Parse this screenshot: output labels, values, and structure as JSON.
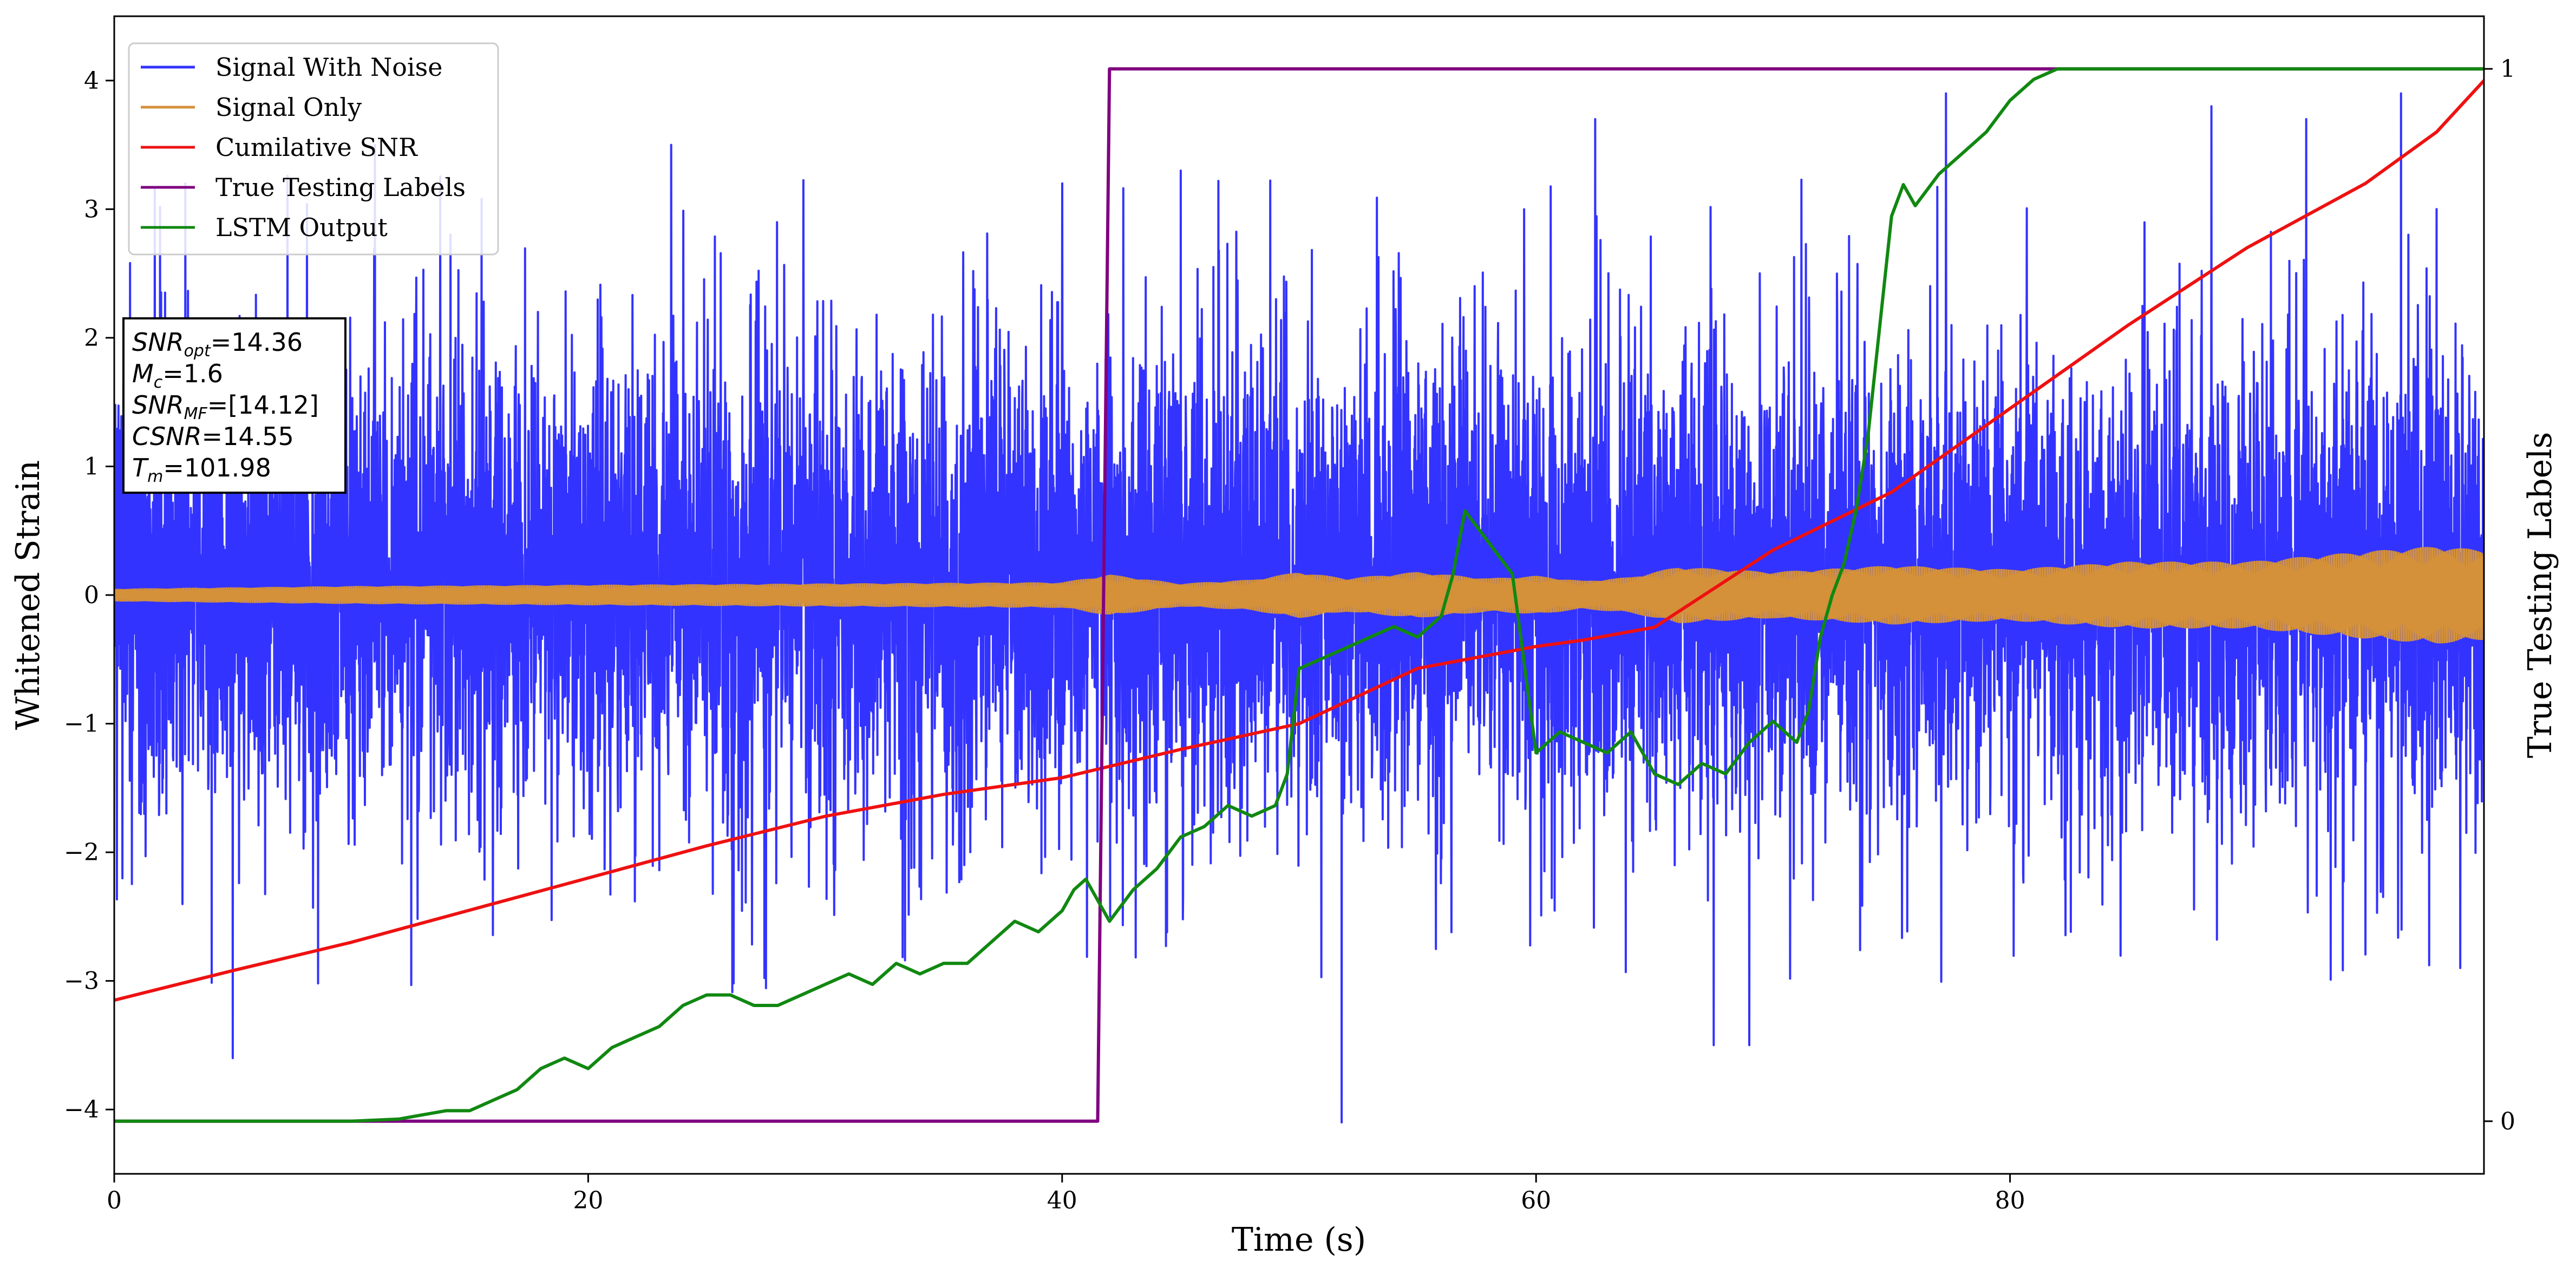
{
  "chart_data": {
    "type": "line",
    "xlabel": "Time (s)",
    "ylabel": "Whitened Strain",
    "y2label": "True Testing Labels",
    "xlim": [
      0,
      100
    ],
    "ylim": [
      -4.5,
      4.5
    ],
    "y2lim": [
      -0.05,
      1.05
    ],
    "x_ticks": [
      0,
      20,
      40,
      60,
      80
    ],
    "y_ticks": [
      -4,
      -3,
      -2,
      -1,
      0,
      1,
      2,
      3,
      4
    ],
    "y2_ticks": [
      0,
      1
    ],
    "legend_position": "upper-left",
    "grid": false,
    "series": [
      {
        "name": "Signal With Noise",
        "axis": "left",
        "color": "#3333ff",
        "style": "dense-noise",
        "typical_band": [
          -1.3,
          1.5
        ],
        "peaks": [
          {
            "x": 3.0,
            "y": 3.2
          },
          {
            "x": 5.0,
            "y": -3.6
          },
          {
            "x": 11.0,
            "y": 3.5
          },
          {
            "x": 23.5,
            "y": 3.5
          },
          {
            "x": 40.0,
            "y": 3.2
          },
          {
            "x": 45.0,
            "y": 3.3
          },
          {
            "x": 51.8,
            "y": -4.1
          },
          {
            "x": 62.5,
            "y": 3.7
          },
          {
            "x": 67.5,
            "y": -3.5
          },
          {
            "x": 69.0,
            "y": -3.5
          },
          {
            "x": 77.3,
            "y": 3.9
          },
          {
            "x": 88.5,
            "y": 3.8
          },
          {
            "x": 92.5,
            "y": 3.7
          },
          {
            "x": 96.5,
            "y": 3.9
          },
          {
            "x": 98.0,
            "y": 3.0
          },
          {
            "x": 99.0,
            "y": -2.9
          }
        ]
      },
      {
        "name": "Signal Only",
        "axis": "left",
        "color": "#d4913a",
        "style": "envelope",
        "x": [
          0,
          10,
          20,
          30,
          40,
          42,
          45,
          48,
          50,
          52,
          55,
          58,
          60,
          62,
          64,
          66,
          70,
          75,
          80,
          85,
          90,
          95,
          98,
          100
        ],
        "amplitude": [
          0.05,
          0.07,
          0.08,
          0.09,
          0.1,
          0.16,
          0.09,
          0.12,
          0.18,
          0.13,
          0.18,
          0.13,
          0.15,
          0.11,
          0.14,
          0.22,
          0.18,
          0.23,
          0.2,
          0.26,
          0.26,
          0.34,
          0.38,
          0.35
        ]
      },
      {
        "name": "Cumilative SNR",
        "axis": "left",
        "color": "#ee1111",
        "x": [
          0,
          5,
          10,
          15,
          20,
          25,
          30,
          35,
          40,
          45,
          50,
          55,
          60,
          62,
          65,
          70,
          75,
          80,
          85,
          90,
          95,
          98,
          100
        ],
        "y": [
          -3.15,
          -2.92,
          -2.7,
          -2.45,
          -2.2,
          -1.95,
          -1.72,
          -1.55,
          -1.42,
          -1.2,
          -1.0,
          -0.57,
          -0.4,
          -0.35,
          -0.25,
          0.35,
          0.8,
          1.45,
          2.1,
          2.7,
          3.2,
          3.6,
          4.0
        ]
      },
      {
        "name": "True Testing Labels",
        "axis": "right",
        "color": "#800080",
        "x": [
          0,
          41.5,
          42.0,
          100
        ],
        "y": [
          0,
          0,
          1,
          1
        ]
      },
      {
        "name": "LSTM Output",
        "axis": "right",
        "color": "#118811",
        "x": [
          0,
          10,
          12,
          14,
          15,
          16,
          17,
          18,
          19,
          20,
          21,
          22,
          23,
          24,
          25,
          26,
          27,
          28,
          29,
          30,
          31,
          32,
          33,
          34,
          35,
          36,
          37,
          38,
          39,
          40,
          40.5,
          41,
          42,
          43,
          44,
          45,
          46,
          47,
          48,
          49,
          49.5,
          50,
          51,
          52,
          53,
          54,
          55,
          56,
          56.5,
          57,
          58,
          59,
          60,
          61,
          62,
          63,
          64,
          65,
          66,
          67,
          68,
          69,
          70,
          71,
          71.5,
          72,
          72.5,
          73,
          73.5,
          74,
          75,
          75.5,
          76,
          77,
          78,
          79,
          80,
          81,
          82,
          85,
          90,
          95,
          100
        ],
        "y": [
          0,
          0,
          0.002,
          0.01,
          0.01,
          0.02,
          0.03,
          0.05,
          0.06,
          0.05,
          0.07,
          0.08,
          0.09,
          0.11,
          0.12,
          0.12,
          0.11,
          0.11,
          0.12,
          0.13,
          0.14,
          0.13,
          0.15,
          0.14,
          0.15,
          0.15,
          0.17,
          0.19,
          0.18,
          0.2,
          0.22,
          0.23,
          0.19,
          0.22,
          0.24,
          0.27,
          0.28,
          0.3,
          0.29,
          0.3,
          0.33,
          0.43,
          0.44,
          0.45,
          0.46,
          0.47,
          0.46,
          0.48,
          0.52,
          0.58,
          0.55,
          0.52,
          0.35,
          0.37,
          0.36,
          0.35,
          0.37,
          0.33,
          0.32,
          0.34,
          0.33,
          0.36,
          0.38,
          0.36,
          0.39,
          0.46,
          0.5,
          0.53,
          0.58,
          0.65,
          0.86,
          0.89,
          0.87,
          0.9,
          0.92,
          0.94,
          0.97,
          0.99,
          1.0,
          1.0,
          1.0,
          1.0,
          1.0
        ]
      }
    ],
    "annotation_lines": [
      {
        "label": "SNR",
        "sub": "opt",
        "value": "=14.36"
      },
      {
        "label": "M",
        "sub": "c",
        "value": "=1.6"
      },
      {
        "label": "SNR",
        "sub": "MF",
        "value": "=[14.12]"
      },
      {
        "label": "CSNR",
        "sub": "",
        "value": "=14.55"
      },
      {
        "label": "T",
        "sub": "m",
        "value": "=101.98"
      }
    ]
  }
}
